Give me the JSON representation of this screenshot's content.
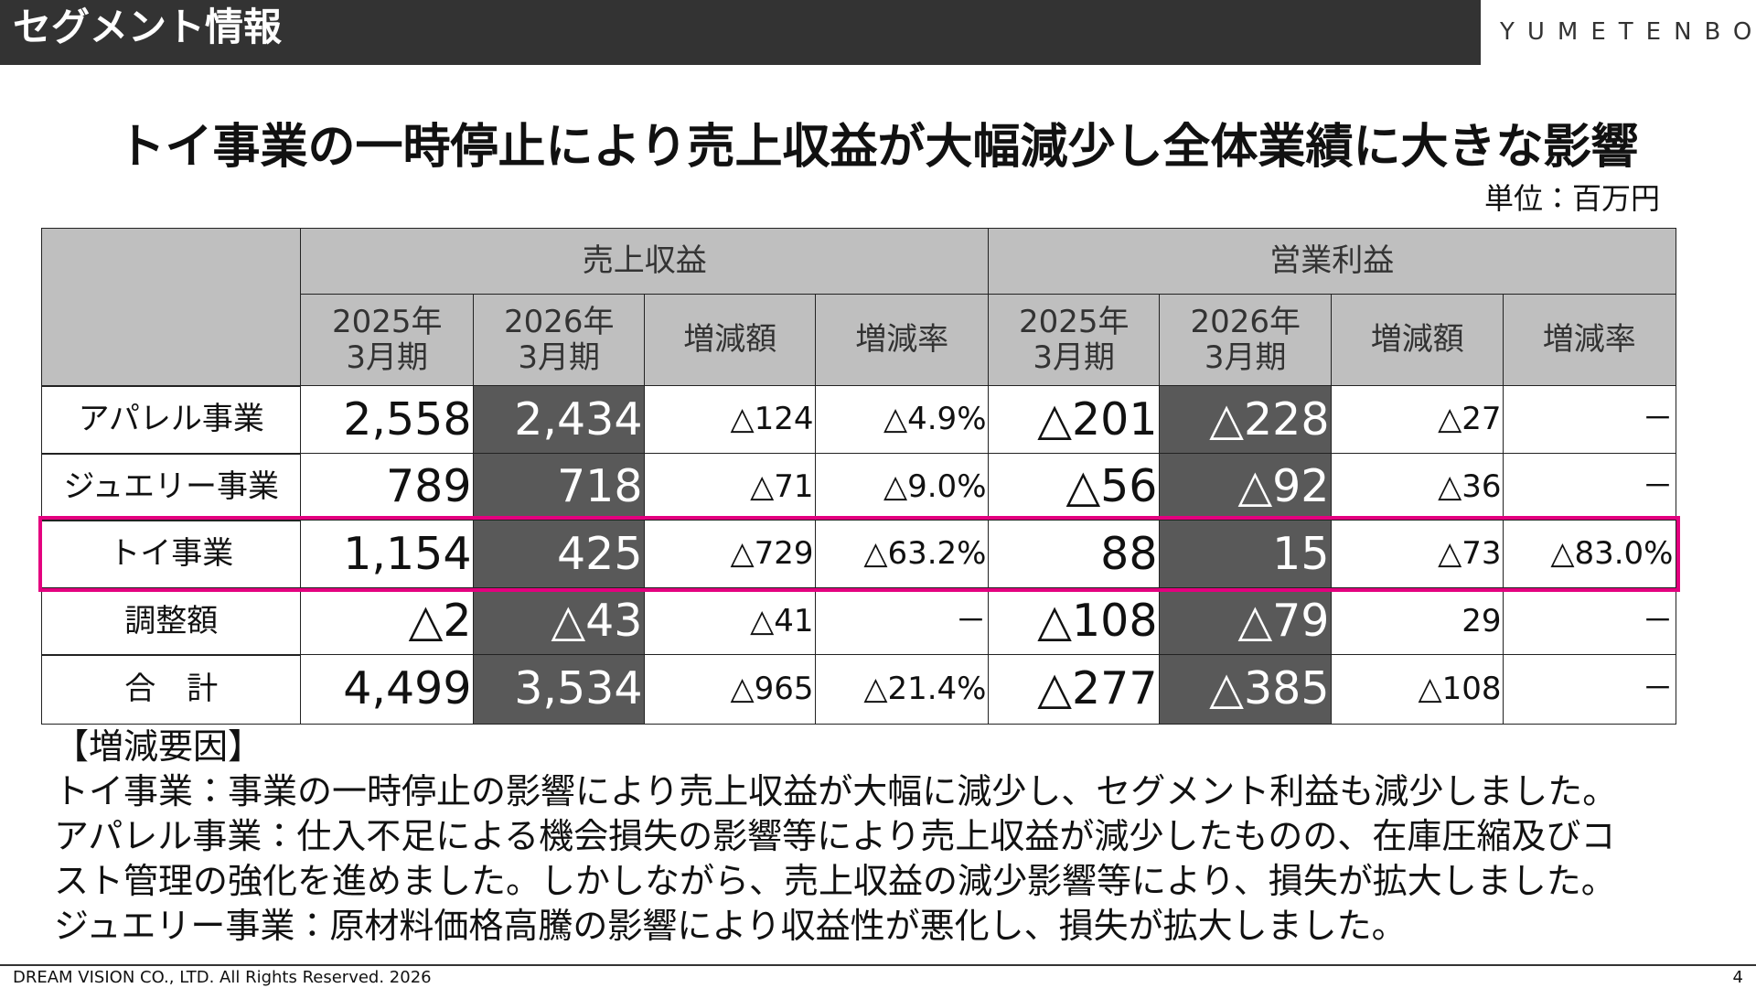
{
  "header": {
    "title": "セグメント情報",
    "logo": "YUMETENBO"
  },
  "headline": "トイ事業の一時停止により売上収益が大幅減少し全体業績に大きな影響",
  "unit": "単位：百万円",
  "table": {
    "groups": [
      "売上収益",
      "営業利益"
    ],
    "columns": [
      "2025年\n3月期",
      "2026年\n3月期",
      "増減額",
      "増減率",
      "2025年\n3月期",
      "2026年\n3月期",
      "増減額",
      "増減率"
    ],
    "rows": [
      [
        "アパレル事業",
        "2,558",
        "2,434",
        "△124",
        "△4.9%",
        "△201",
        "△228",
        "△27",
        "－"
      ],
      [
        "ジュエリー事業",
        "789",
        "718",
        "△71",
        "△9.0%",
        "△56",
        "△92",
        "△36",
        "－"
      ],
      [
        "トイ事業",
        "1,154",
        "425",
        "△729",
        "△63.2%",
        "88",
        "15",
        "△73",
        "△83.0%"
      ],
      [
        "調整額",
        "△2",
        "△43",
        "△41",
        "－",
        "△108",
        "△79",
        "29",
        "－"
      ],
      [
        "合　計",
        "4,499",
        "3,534",
        "△965",
        "△21.4%",
        "△277",
        "△385",
        "△108",
        "－"
      ]
    ]
  },
  "notes": {
    "heading": "【増減要因】",
    "lines": [
      "トイ事業：事業の一時停止の影響により売上収益が大幅に減少し、セグメント利益も減少しました。",
      "アパレル事業：仕入不足による機会損失の影響等により売上収益が減少したものの、在庫圧縮及びコ",
      "スト管理の強化を進めました。しかしながら、売上収益の減少影響等により、損失が拡大しました。",
      "ジュエリー事業：原材料価格高騰の影響により収益性が悪化し、損失が拡大しました。"
    ]
  },
  "footer": {
    "copyright": "DREAM VISION CO., LTD. All Rights Reserved. 2026",
    "page": "4"
  }
}
